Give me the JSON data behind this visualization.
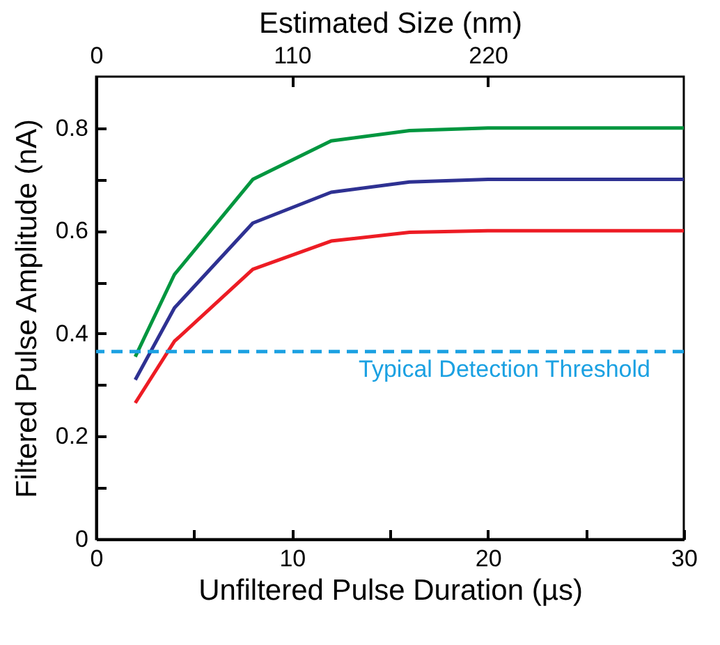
{
  "chart_data": {
    "type": "line",
    "xlabel": "Unfiltered Pulse Duration (µs)",
    "ylabel": "Filtered Pulse Amplitude (nA)",
    "x2label": "Estimated Size (nm)",
    "x": [
      2,
      4,
      8,
      12,
      16,
      20,
      30
    ],
    "series": [
      {
        "color": "#00963f",
        "values": [
          0.355,
          0.515,
          0.7,
          0.775,
          0.795,
          0.8,
          0.8
        ]
      },
      {
        "color": "#2e3192",
        "values": [
          0.31,
          0.45,
          0.615,
          0.675,
          0.695,
          0.7,
          0.7
        ]
      },
      {
        "color": "#ed1c24",
        "values": [
          0.265,
          0.385,
          0.525,
          0.58,
          0.597,
          0.6,
          0.6
        ]
      }
    ],
    "xlim": [
      0,
      30
    ],
    "xticks": [
      0,
      {
        "value": 5,
        "label": null
      },
      10,
      {
        "value": 15,
        "label": null
      },
      20,
      {
        "value": 25,
        "label": null
      },
      30
    ],
    "x2lim": [
      0,
      330
    ],
    "x2ticks": [
      0,
      110,
      220
    ],
    "ylim": [
      0,
      0.9
    ],
    "yticks": [
      0,
      {
        "value": 0.1,
        "label": null
      },
      0.2,
      {
        "value": 0.3,
        "label": null
      },
      0.4,
      {
        "value": 0.5,
        "label": null
      },
      0.6,
      {
        "value": 0.7,
        "label": null
      },
      0.8
    ],
    "ref_lines": [
      {
        "axis": "y",
        "value": 0.365,
        "label": "Typical Detection Threshold",
        "color": "#1ba1e2",
        "line_style": "dashed"
      }
    ],
    "grid": false,
    "legend": false,
    "marker": "none",
    "line_style": "solid"
  }
}
